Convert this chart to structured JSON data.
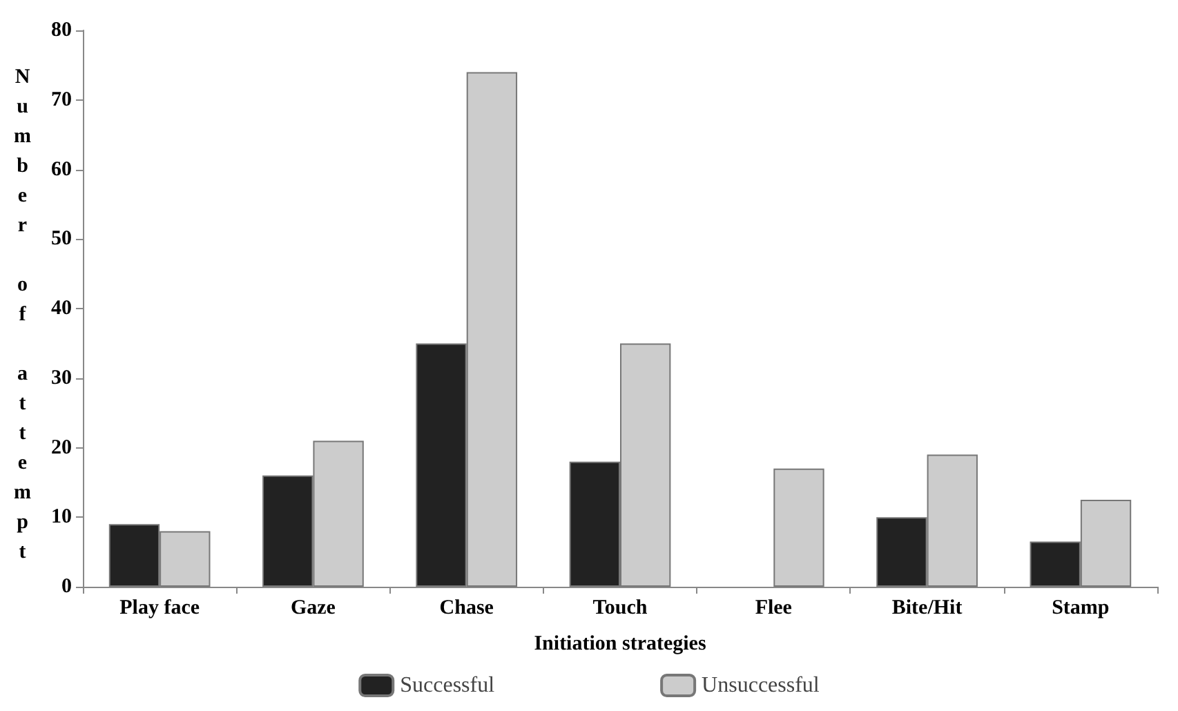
{
  "chart_data": {
    "type": "bar",
    "xlabel": "Initiation strategies",
    "ylabel": "Number of attempt",
    "categories": [
      "Play face",
      "Gaze",
      "Chase",
      "Touch",
      "Flee",
      "Bite/Hit",
      "Stamp"
    ],
    "series": [
      {
        "name": "Successful",
        "color": "#222222",
        "values": [
          9,
          16,
          35,
          18,
          0,
          10,
          6.5
        ]
      },
      {
        "name": "Unsuccessful",
        "color": "#cccccc",
        "values": [
          8,
          21,
          74,
          35,
          17,
          19,
          12.5
        ]
      }
    ],
    "ylim": [
      0,
      80
    ],
    "yticks": [
      0,
      10,
      20,
      30,
      40,
      50,
      60,
      70,
      80
    ],
    "grid": false,
    "legend": "bottom"
  }
}
